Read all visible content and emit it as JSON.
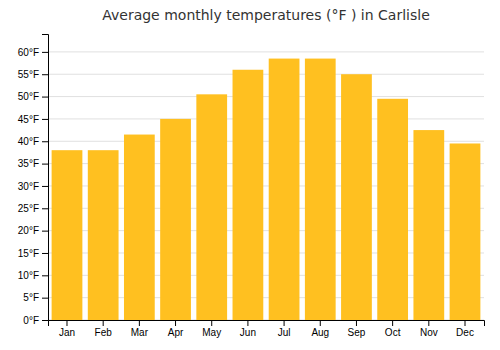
{
  "chart_data": {
    "type": "bar",
    "title": "Average monthly temperatures (°F ) in Carlisle",
    "categories": [
      "Jan",
      "Feb",
      "Mar",
      "Apr",
      "May",
      "Jun",
      "Jul",
      "Aug",
      "Sep",
      "Oct",
      "Nov",
      "Dec"
    ],
    "values": [
      38,
      38,
      41.5,
      45,
      50.5,
      56,
      58.5,
      58.5,
      55,
      49.5,
      42.5,
      39.5
    ],
    "color": "#FFC020",
    "ylim": [
      0,
      64
    ],
    "yticks": [
      {
        "value": 0,
        "label": "0°F"
      },
      {
        "value": 5,
        "label": "5°F"
      },
      {
        "value": 10,
        "label": "10°F"
      },
      {
        "value": 15,
        "label": "15°F"
      },
      {
        "value": 20,
        "label": "20°F"
      },
      {
        "value": 25,
        "label": "25°F"
      },
      {
        "value": 30,
        "label": "30°F"
      },
      {
        "value": 35,
        "label": "35°F"
      },
      {
        "value": 40,
        "label": "40°F"
      },
      {
        "value": 45,
        "label": "45°F"
      },
      {
        "value": 50,
        "label": "50°F"
      },
      {
        "value": 55,
        "label": "55°F"
      },
      {
        "value": 60,
        "label": "60°F"
      }
    ],
    "grid": true
  }
}
